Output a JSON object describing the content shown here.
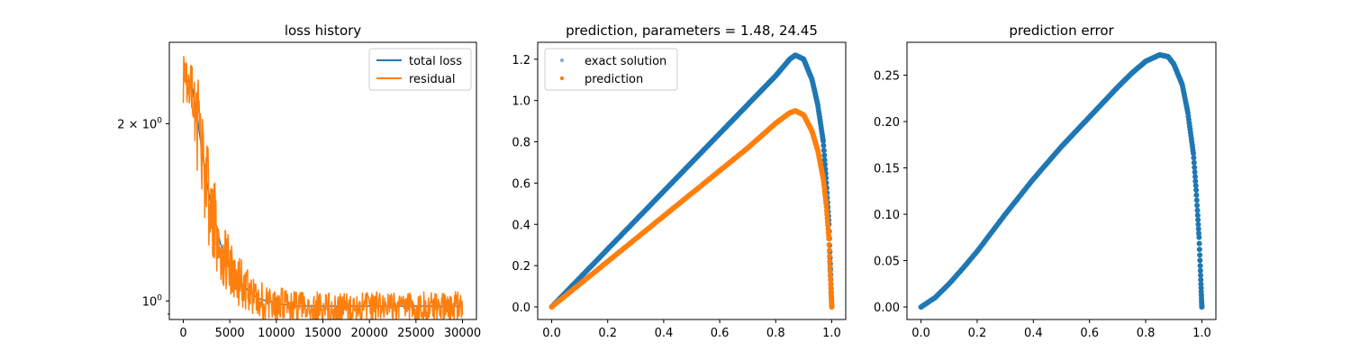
{
  "chart_data": [
    {
      "type": "line",
      "title": "loss history",
      "xlabel": "",
      "ylabel": "",
      "yscale": "log",
      "xlim": [
        -1500,
        31500
      ],
      "ylim": [
        0.93,
        2.75
      ],
      "xticks": [
        {
          "value": 0,
          "label": "0"
        },
        {
          "value": 5000,
          "label": "5000"
        },
        {
          "value": 10000,
          "label": "10000"
        },
        {
          "value": 15000,
          "label": "15000"
        },
        {
          "value": 20000,
          "label": "20000"
        },
        {
          "value": 25000,
          "label": "25000"
        },
        {
          "value": 30000,
          "label": "30000"
        }
      ],
      "yticks": [
        {
          "value": 1.0,
          "base": "10",
          "exp": "0",
          "coef": ""
        },
        {
          "value": 2.0,
          "base": "10",
          "exp": "0",
          "coef": "2 × "
        }
      ],
      "yminor": [
        0.95,
        3.0
      ],
      "legend": "top-right",
      "series": [
        {
          "name": "total loss",
          "color": "#1f77b4",
          "x": [
            0,
            500,
            1000,
            1500,
            2000,
            2500,
            3000,
            3500,
            4000,
            5000,
            6000,
            7000,
            8000,
            10000,
            12000,
            15000,
            20000,
            25000,
            30000
          ],
          "y": [
            2.4,
            2.36,
            2.3,
            2.05,
            1.8,
            1.6,
            1.45,
            1.35,
            1.25,
            1.15,
            1.08,
            1.04,
            1.01,
            0.99,
            0.98,
            0.98,
            0.98,
            0.98,
            0.98
          ]
        },
        {
          "name": "residual",
          "color": "#ff7f0e",
          "x": [
            0,
            500,
            1000,
            1500,
            2000,
            2500,
            3000,
            3500,
            4000,
            5000,
            6000,
            7000,
            8000,
            10000,
            12000,
            15000,
            20000,
            25000,
            30000
          ],
          "y": [
            2.4,
            2.36,
            2.3,
            2.05,
            1.8,
            1.6,
            1.45,
            1.35,
            1.25,
            1.15,
            1.08,
            1.04,
            1.01,
            0.99,
            0.98,
            0.98,
            0.98,
            0.98,
            0.98
          ],
          "noise": [
            0.12,
            0.12,
            0.15,
            0.2,
            0.2,
            0.2,
            0.18,
            0.16,
            0.14,
            0.12,
            0.1,
            0.09,
            0.08,
            0.07,
            0.06,
            0.06,
            0.06,
            0.06,
            0.06
          ]
        }
      ]
    },
    {
      "type": "scatter",
      "title": "prediction, parameters = 1.48, 24.45",
      "xlabel": "",
      "ylabel": "",
      "xlim": [
        -0.05,
        1.05
      ],
      "ylim": [
        -0.061,
        1.282
      ],
      "xticks": [
        0.0,
        0.2,
        0.4,
        0.6,
        0.8,
        1.0
      ],
      "xticklabels": [
        "0.0",
        "0.2",
        "0.4",
        "0.6",
        "0.8",
        "1.0"
      ],
      "yticks": [
        0.0,
        0.2,
        0.4,
        0.6,
        0.8,
        1.0,
        1.2
      ],
      "yticklabels": [
        "0.0",
        "0.2",
        "0.4",
        "0.6",
        "0.8",
        "1.0",
        "1.2"
      ],
      "legend": "top-left",
      "series": [
        {
          "name": "exact solution",
          "color": "#1f77b4",
          "x": [
            0.0,
            0.1,
            0.2,
            0.3,
            0.4,
            0.5,
            0.6,
            0.7,
            0.75,
            0.8,
            0.85,
            0.87,
            0.9,
            0.93,
            0.95,
            0.97,
            0.98,
            0.99,
            1.0
          ],
          "y": [
            0.0,
            0.14,
            0.28,
            0.42,
            0.56,
            0.7,
            0.84,
            0.98,
            1.05,
            1.12,
            1.2,
            1.22,
            1.2,
            1.1,
            0.98,
            0.8,
            0.62,
            0.4,
            0.0
          ]
        },
        {
          "name": "prediction",
          "color": "#ff7f0e",
          "x": [
            0.0,
            0.1,
            0.2,
            0.3,
            0.4,
            0.5,
            0.6,
            0.7,
            0.75,
            0.8,
            0.85,
            0.87,
            0.9,
            0.93,
            0.95,
            0.97,
            0.98,
            0.99,
            1.0
          ],
          "y": [
            0.0,
            0.11,
            0.22,
            0.33,
            0.44,
            0.55,
            0.66,
            0.77,
            0.83,
            0.89,
            0.94,
            0.95,
            0.93,
            0.85,
            0.76,
            0.62,
            0.5,
            0.33,
            0.0
          ]
        }
      ]
    },
    {
      "type": "scatter",
      "title": "prediction error",
      "xlabel": "",
      "ylabel": "",
      "xlim": [
        -0.05,
        1.05
      ],
      "ylim": [
        -0.0135,
        0.2855
      ],
      "xticks": [
        0.0,
        0.2,
        0.4,
        0.6,
        0.8,
        1.0
      ],
      "xticklabels": [
        "0.0",
        "0.2",
        "0.4",
        "0.6",
        "0.8",
        "1.0"
      ],
      "yticks": [
        0.0,
        0.05,
        0.1,
        0.15,
        0.2,
        0.25
      ],
      "yticklabels": [
        "0.00",
        "0.05",
        "0.10",
        "0.15",
        "0.20",
        "0.25"
      ],
      "series": [
        {
          "name": "",
          "color": "#1f77b4",
          "x": [
            0.0,
            0.05,
            0.1,
            0.15,
            0.2,
            0.3,
            0.4,
            0.5,
            0.6,
            0.7,
            0.75,
            0.8,
            0.85,
            0.88,
            0.9,
            0.93,
            0.95,
            0.97,
            0.98,
            0.99,
            1.0
          ],
          "y": [
            0.0,
            0.01,
            0.025,
            0.042,
            0.06,
            0.1,
            0.138,
            0.173,
            0.205,
            0.237,
            0.252,
            0.265,
            0.272,
            0.27,
            0.262,
            0.24,
            0.21,
            0.165,
            0.125,
            0.075,
            0.0
          ]
        }
      ]
    }
  ]
}
